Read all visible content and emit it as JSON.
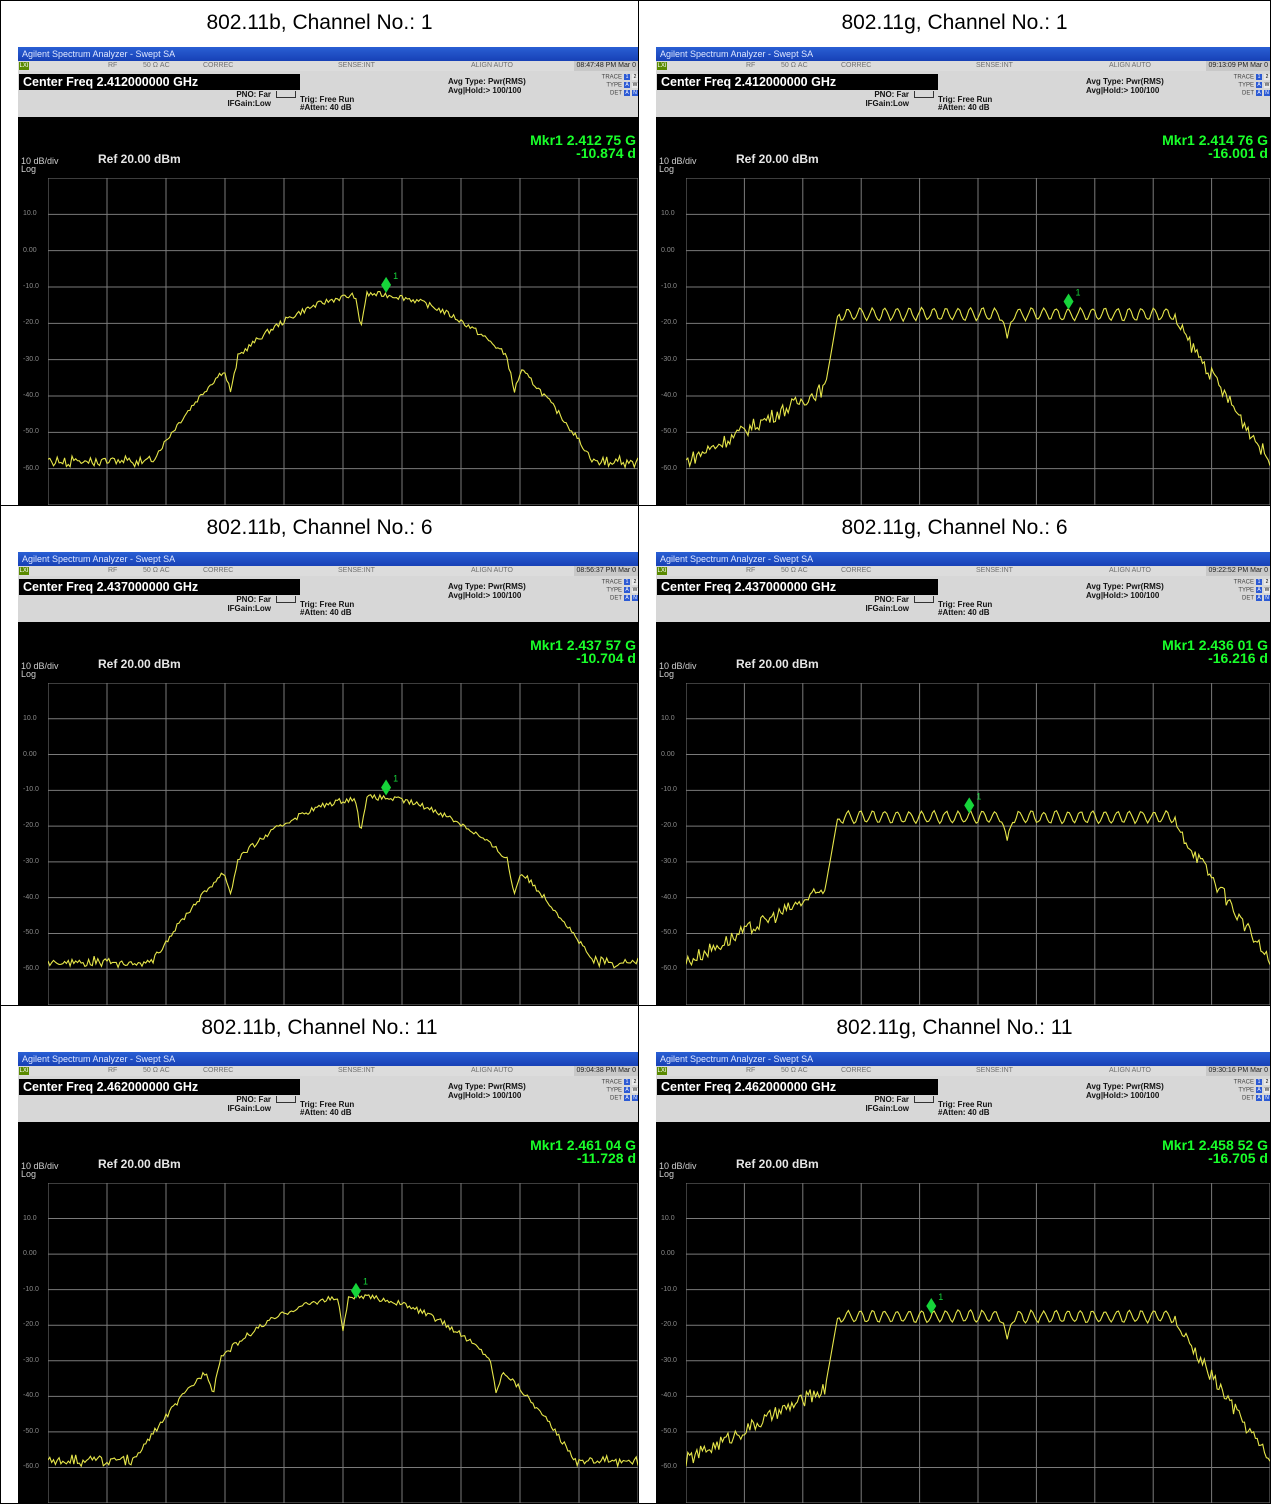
{
  "panels": [
    {
      "title": "802.11b, Channel No.: 1",
      "timestamp": "08:47:48 PM Mar 0",
      "center": "Center Freq  2.412000000 GHz",
      "mkr_freq": "Mkr1 2.412 75 G",
      "mkr_amp": "-10.874 d",
      "mode": "b",
      "marker_x": 0.573,
      "marker_y": -9.4
    },
    {
      "title": "802.11g, Channel No.: 1",
      "timestamp": "09:13:09 PM Mar 0",
      "center": "Center Freq  2.412000000 GHz",
      "mkr_freq": "Mkr1 2.414 76 G",
      "mkr_amp": "-16.001 d",
      "mode": "g",
      "marker_x": 0.655,
      "marker_y": -14.0
    },
    {
      "title": "802.11b, Channel No.: 6",
      "timestamp": "08:56:37 PM Mar 0",
      "center": "Center Freq  2.437000000 GHz",
      "mkr_freq": "Mkr1 2.437 57 G",
      "mkr_amp": "-10.704 d",
      "mode": "b",
      "marker_x": 0.573,
      "marker_y": -9.2
    },
    {
      "title": "802.11g, Channel No.: 6",
      "timestamp": "09:22:52 PM Mar 0",
      "center": "Center Freq  2.437000000 GHz",
      "mkr_freq": "Mkr1 2.436 01 G",
      "mkr_amp": "-16.216 d",
      "mode": "g",
      "marker_x": 0.485,
      "marker_y": -14.2
    },
    {
      "title": "802.11b, Channel No.: 11",
      "timestamp": "09:04:38 PM Mar 0",
      "center": "Center Freq  2.462000000 GHz",
      "mkr_freq": "Mkr1 2.461 04 G",
      "mkr_amp": "-11.728 d",
      "mode": "b",
      "marker_x": 0.522,
      "marker_y": -10.3
    },
    {
      "title": "802.11g, Channel No.: 11",
      "timestamp": "09:30:16 PM Mar 0",
      "center": "Center Freq  2.462000000 GHz",
      "mkr_freq": "Mkr1 2.458 52 G",
      "mkr_amp": "-16.705 d",
      "mode": "g",
      "marker_x": 0.42,
      "marker_y": -14.6
    }
  ],
  "common": {
    "app_title": "Agilent Spectrum Analyzer - Swept SA",
    "status": {
      "lxi": "LXI",
      "rf": "RF",
      "ohm": "50 Ω  AC",
      "corrsec": "CORREC",
      "sense": "SENSE:INT",
      "align": "ALIGN AUTO"
    },
    "pno": "PNO: Far",
    "ifgain": "IFGain:Low",
    "trig": "Trig: Free Run",
    "atten": "#Atten: 40 dB",
    "avg_type": "Avg Type: Pwr(RMS)",
    "avg_hold": "Avg|Hold:> 100/100",
    "trace_label": "TRACE",
    "type_label": "TYPE",
    "det_label": "DET",
    "scale": "10 dB/div",
    "scale_type": "Log",
    "ref": "Ref 20.00 dBm",
    "marker_label": "1",
    "y_ticks": [
      "10.0",
      "0.00",
      "-10.0",
      "-20.0",
      "-30.0",
      "-40.0",
      "-50.0",
      "-60.0"
    ],
    "colors": {
      "trace": "#e6e64a",
      "marker": "#16d43a",
      "grid": "#7a7a7a",
      "readout": "#19ff2a"
    }
  },
  "chart_data": {
    "type": "line",
    "ylabel": "",
    "ylim": [
      -70,
      20
    ],
    "y_ticks": [
      10,
      0,
      -10,
      -20,
      -30,
      -40,
      -50,
      -60
    ]
  }
}
